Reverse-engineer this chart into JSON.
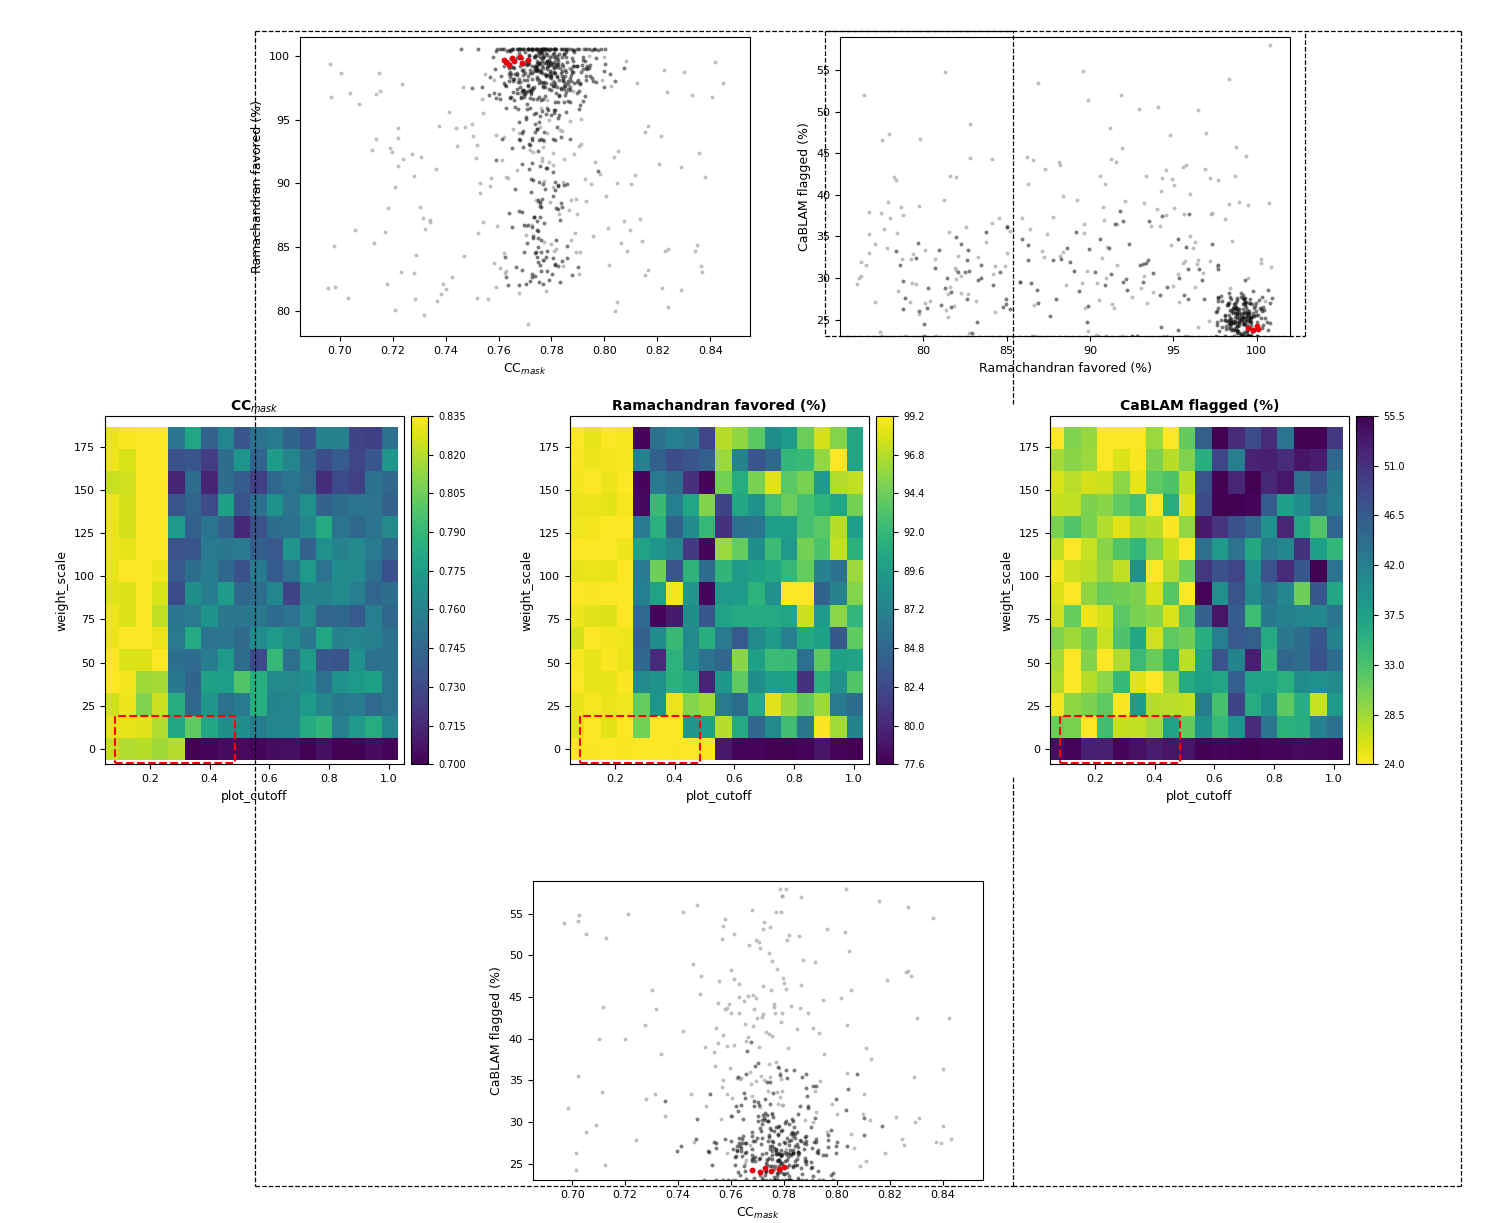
{
  "fig_width": 15.0,
  "fig_height": 12.23,
  "scatter1": {
    "xlabel": "CC$_{mask}$",
    "ylabel": "Ramachandran favored (%)",
    "xlim": [
      0.685,
      0.855
    ],
    "ylim": [
      78,
      101.5
    ],
    "xticks": [
      0.7,
      0.72,
      0.74,
      0.76,
      0.78,
      0.8,
      0.82,
      0.84
    ],
    "yticks": [
      80,
      85,
      90,
      95,
      100
    ]
  },
  "scatter2": {
    "xlabel": "Ramachandran favored (%)",
    "ylabel": "CaBLAM flagged (%)",
    "xlim": [
      75,
      102
    ],
    "ylim": [
      23,
      59
    ],
    "xticks": [
      80,
      85,
      90,
      95,
      100
    ],
    "yticks": [
      25,
      30,
      35,
      40,
      45,
      50,
      55
    ]
  },
  "scatter3": {
    "xlabel": "CC$_{mask}$",
    "ylabel": "CaBLAM flagged (%)",
    "xlim": [
      0.685,
      0.855
    ],
    "ylim": [
      23,
      59
    ],
    "xticks": [
      0.7,
      0.72,
      0.74,
      0.76,
      0.78,
      0.8,
      0.82,
      0.84
    ],
    "yticks": [
      25,
      30,
      35,
      40,
      45,
      50,
      55
    ]
  },
  "heatmap1": {
    "title": "CC$_{mask}$",
    "xlabel": "plot_cutoff",
    "ylabel": "weight_scale",
    "vmin": 0.7,
    "vmax": 0.835,
    "cticks": [
      0.7,
      0.715,
      0.73,
      0.745,
      0.76,
      0.775,
      0.79,
      0.805,
      0.82,
      0.835
    ],
    "xticks": [
      0.2,
      0.4,
      0.6,
      0.8,
      1.0
    ],
    "yticks": [
      0,
      25,
      50,
      75,
      100,
      125,
      150,
      175
    ],
    "cmap": "viridis"
  },
  "heatmap2": {
    "title": "Ramachandran favored (%)",
    "xlabel": "plot_cutoff",
    "ylabel": "weight_scale",
    "vmin": 77.6,
    "vmax": 99.2,
    "cticks": [
      77.6,
      80.0,
      82.4,
      84.8,
      87.2,
      89.6,
      92.0,
      94.4,
      96.8,
      99.2
    ],
    "xticks": [
      0.2,
      0.4,
      0.6,
      0.8,
      1.0
    ],
    "yticks": [
      0,
      25,
      50,
      75,
      100,
      125,
      150,
      175
    ],
    "cmap": "viridis"
  },
  "heatmap3": {
    "title": "CaBLAM flagged (%)",
    "xlabel": "plot_cutoff",
    "ylabel": "weight_scale",
    "vmin": 24.0,
    "vmax": 55.5,
    "cticks": [
      24.0,
      28.5,
      33.0,
      37.5,
      42.0,
      46.5,
      51.0,
      55.5
    ],
    "xticks": [
      0.2,
      0.4,
      0.6,
      0.8,
      1.0
    ],
    "yticks": [
      0,
      25,
      50,
      75,
      100,
      125,
      150,
      175
    ],
    "cmap": "viridis_r"
  },
  "scatter_dot_size": 8,
  "red_color": "#e8000b",
  "dark_color": "#111111",
  "light_gray": "#aaaaaa"
}
